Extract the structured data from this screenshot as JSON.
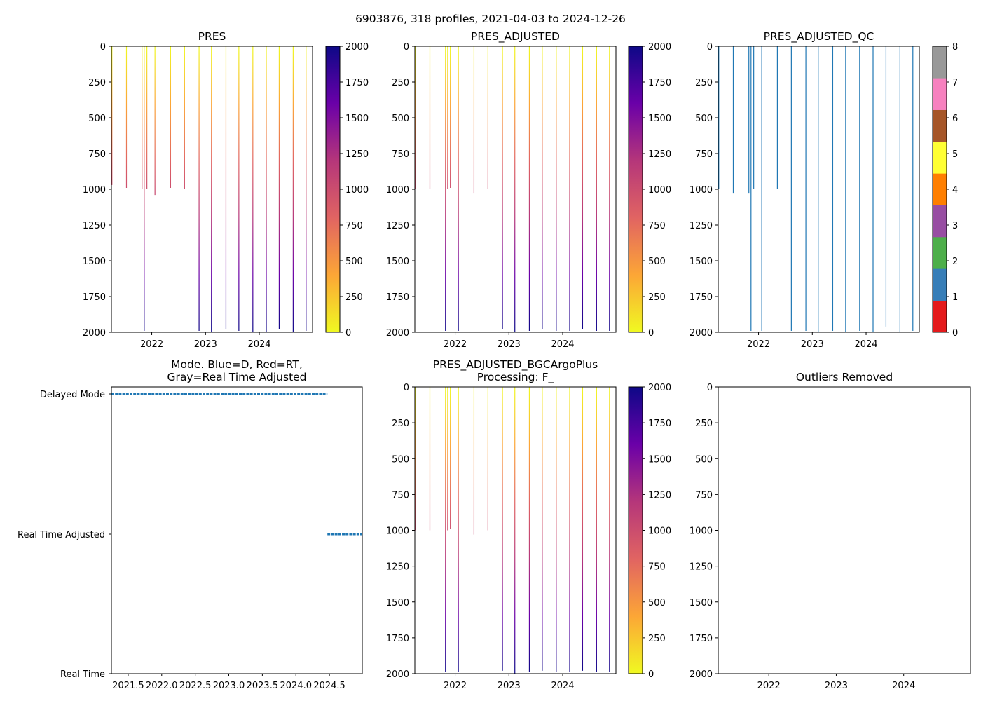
{
  "figure": {
    "title": "6903876, 318 profiles, 2021-04-03 to 2024-12-26"
  },
  "colors": {
    "line_blue": "#1f77b4",
    "qc_line": "#1f77b4"
  },
  "profile_dates": [
    2021.26,
    2021.53,
    2021.82,
    2021.86,
    2021.91,
    2022.06,
    2022.35,
    2022.61,
    2022.88,
    2023.11,
    2023.38,
    2023.62,
    2023.88,
    2024.13,
    2024.37,
    2024.63,
    2024.87
  ],
  "chart_data": [
    {
      "id": "pres",
      "type": "scatter",
      "title": "PRES",
      "xlim": [
        2021.25,
        2024.99
      ],
      "ylim": [
        2000,
        0
      ],
      "xticks": [
        2022,
        2023,
        2024
      ],
      "xtick_labels": [
        "2022",
        "2023",
        "2024"
      ],
      "yticks": [
        0,
        250,
        500,
        750,
        1000,
        1250,
        1500,
        1750,
        2000
      ],
      "profile_max_pres": [
        970,
        990,
        1000,
        1990,
        1000,
        1040,
        990,
        1000,
        1990,
        2000,
        1980,
        1990,
        2000,
        2000,
        1980,
        2000,
        1990
      ],
      "colorbar": {
        "type": "continuous",
        "cmap": "plasma_r",
        "range": [
          0,
          2000
        ],
        "ticks": [
          0,
          250,
          500,
          750,
          1000,
          1250,
          1500,
          1750,
          2000
        ]
      }
    },
    {
      "id": "pres_adj",
      "type": "scatter",
      "title": "PRES_ADJUSTED",
      "xlim": [
        2021.25,
        2024.99
      ],
      "ylim": [
        2000,
        0
      ],
      "xticks": [
        2022,
        2023,
        2024
      ],
      "xtick_labels": [
        "2022",
        "2023",
        "2024"
      ],
      "yticks": [
        0,
        250,
        500,
        750,
        1000,
        1250,
        1500,
        1750,
        2000
      ],
      "profile_max_pres": [
        1000,
        1000,
        1990,
        1000,
        990,
        1990,
        1030,
        1000,
        1980,
        2000,
        1990,
        1980,
        1990,
        1990,
        1980,
        1990,
        1990
      ],
      "colorbar": {
        "type": "continuous",
        "cmap": "plasma_r",
        "range": [
          0,
          2000
        ],
        "ticks": [
          0,
          250,
          500,
          750,
          1000,
          1250,
          1500,
          1750,
          2000
        ]
      }
    },
    {
      "id": "pres_adj_qc",
      "type": "scatter",
      "title": "PRES_ADJUSTED_QC",
      "xlim": [
        2021.25,
        2024.99
      ],
      "ylim": [
        2000,
        0
      ],
      "xticks": [
        2022,
        2023,
        2024
      ],
      "xtick_labels": [
        "2022",
        "2023",
        "2024"
      ],
      "yticks": [
        0,
        250,
        500,
        750,
        1000,
        1250,
        1500,
        1750,
        2000
      ],
      "profile_max_pres": [
        1000,
        1030,
        1030,
        1990,
        1000,
        1990,
        1000,
        1990,
        1990,
        2000,
        1990,
        2000,
        1990,
        2000,
        1960,
        2000,
        1990
      ],
      "colorbar": {
        "type": "categorical",
        "range": [
          0,
          8
        ],
        "ticks": [
          0,
          1,
          2,
          3,
          4,
          5,
          6,
          7,
          8
        ],
        "colors": [
          "#e41a1c",
          "#377eb8",
          "#4daf4a",
          "#984ea3",
          "#ff7f00",
          "#ffff33",
          "#a65628",
          "#f781bf",
          "#999999"
        ]
      }
    },
    {
      "id": "mode",
      "type": "line",
      "title_lines": [
        "Mode. Blue=D, Red=RT,",
        "Gray=Real Time Adjusted"
      ],
      "xlim": [
        2021.25,
        2024.99
      ],
      "xticks": [
        2021.5,
        2022.0,
        2022.5,
        2023.0,
        2023.5,
        2024.0,
        2024.5
      ],
      "xtick_labels": [
        "2021.5",
        "2022.0",
        "2022.5",
        "2023.0",
        "2023.5",
        "2024.0",
        "2024.5"
      ],
      "y_categories": [
        "Delayed Mode",
        "Real Time Adjusted",
        "Real Time"
      ],
      "segments": [
        {
          "from": 2021.25,
          "to": 2024.47,
          "level": "Delayed Mode"
        },
        {
          "from": 2024.47,
          "to": 2024.99,
          "level": "Real Time Adjusted"
        }
      ]
    },
    {
      "id": "pres_bgc",
      "type": "scatter",
      "title_lines": [
        "PRES_ADJUSTED_BGCArgoPlus",
        "Processing: F_"
      ],
      "xlim": [
        2021.25,
        2024.99
      ],
      "ylim": [
        2000,
        0
      ],
      "xticks": [
        2022,
        2023,
        2024
      ],
      "xtick_labels": [
        "2022",
        "2023",
        "2024"
      ],
      "yticks": [
        0,
        250,
        500,
        750,
        1000,
        1250,
        1500,
        1750,
        2000
      ],
      "profile_max_pres": [
        1000,
        1000,
        1990,
        1000,
        990,
        1990,
        1030,
        1000,
        1980,
        2000,
        1990,
        1980,
        1990,
        1990,
        1980,
        1990,
        1990
      ],
      "colorbar": {
        "type": "continuous",
        "cmap": "plasma_r",
        "range": [
          0,
          2000
        ],
        "ticks": [
          0,
          250,
          500,
          750,
          1000,
          1250,
          1500,
          1750,
          2000
        ]
      }
    },
    {
      "id": "outliers",
      "type": "scatter",
      "title": "Outliers Removed",
      "xlim": [
        2021.25,
        2024.99
      ],
      "ylim": [
        2000,
        0
      ],
      "xticks": [
        2022,
        2023,
        2024
      ],
      "xtick_labels": [
        "2022",
        "2023",
        "2024"
      ],
      "yticks": [
        0,
        250,
        500,
        750,
        1000,
        1250,
        1500,
        1750,
        2000
      ],
      "points": []
    }
  ]
}
